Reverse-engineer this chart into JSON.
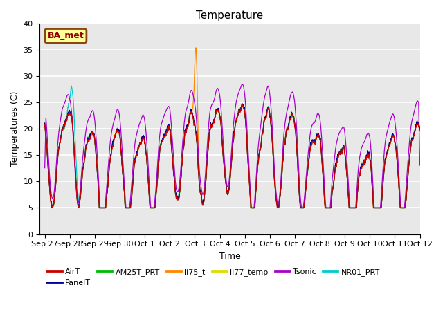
{
  "title": "Temperature",
  "xlabel": "Time",
  "ylabel": "Temperatures (C)",
  "ylim": [
    0,
    40
  ],
  "bg_color": "#e8e8e8",
  "fig_color": "#ffffff",
  "annotation_text": "BA_met",
  "series_colors": {
    "AirT": "#cc0000",
    "PanelT": "#000099",
    "AM25T_PRT": "#00bb00",
    "li75_t": "#ff8800",
    "li77_temp": "#dddd00",
    "Tsonic": "#aa00cc",
    "NR01_PRT": "#00cccc"
  },
  "tick_labels": [
    "Sep 27",
    "Sep 28",
    "Sep 29",
    "Sep 30",
    "Oct 1",
    "Oct 2",
    "Oct 3",
    "Oct 4",
    "Oct 5",
    "Oct 6",
    "Oct 7",
    "Oct 8",
    "Oct 9",
    "Oct 10",
    "Oct 11",
    "Oct 12"
  ],
  "tick_positions": [
    0,
    1,
    2,
    3,
    4,
    5,
    6,
    7,
    8,
    9,
    10,
    11,
    12,
    13,
    14,
    15
  ],
  "n_points": 2160
}
